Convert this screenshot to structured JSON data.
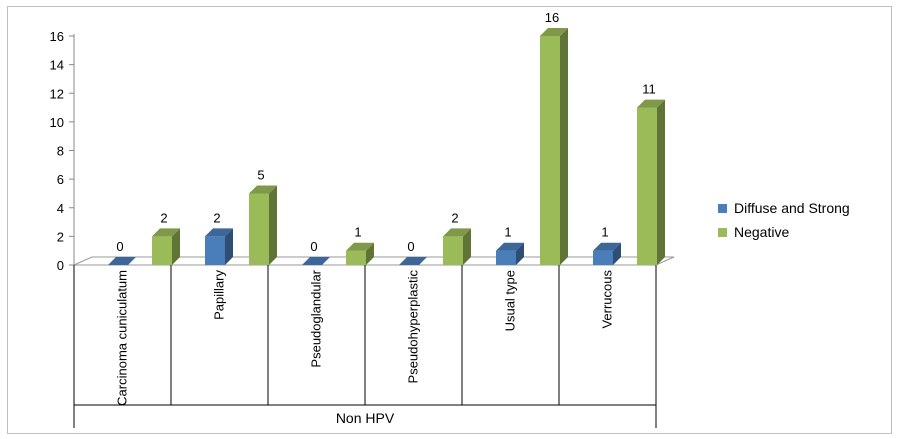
{
  "chart_data": {
    "type": "bar",
    "categories": [
      "Carcinoma cuniculatum",
      "Papillary",
      "Pseudoglandular",
      "Pseudohyperplastic",
      "Usual type",
      "Verrucous"
    ],
    "group_label": "Non HPV",
    "series": [
      {
        "name": "Diffuse and Strong",
        "values": [
          0,
          2,
          0,
          0,
          1,
          1
        ],
        "color": "#4a7ebb"
      },
      {
        "name": "Negative",
        "values": [
          2,
          5,
          1,
          2,
          16,
          11
        ],
        "color": "#9bbb59"
      }
    ],
    "yticks": [
      0,
      2,
      4,
      6,
      8,
      10,
      12,
      14,
      16
    ],
    "ylim": [
      0,
      16
    ],
    "grid": false,
    "legend_position": "right",
    "three_d": true
  }
}
